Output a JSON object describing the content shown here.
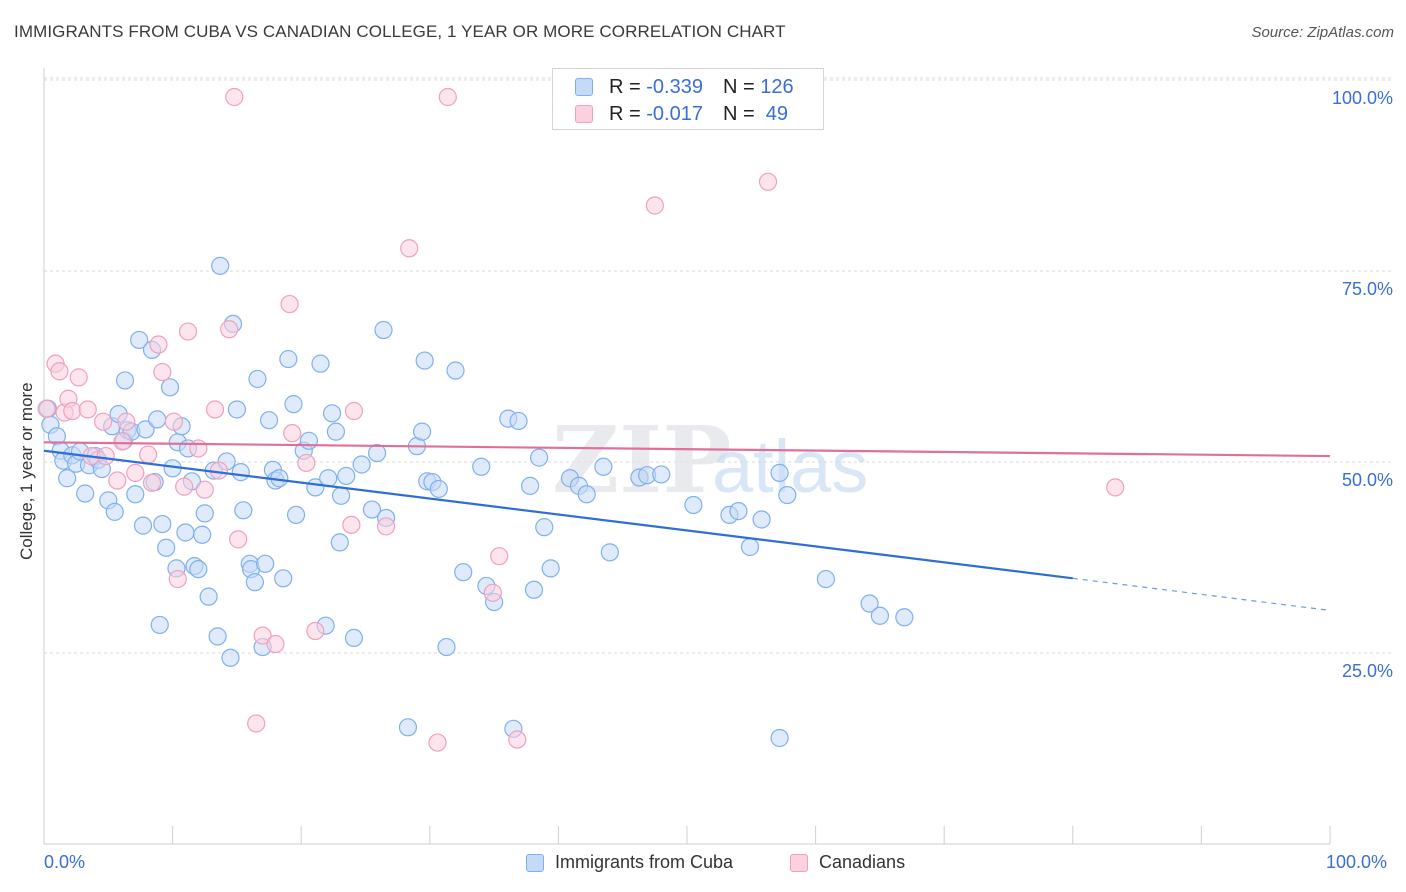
{
  "title": "IMMIGRANTS FROM CUBA VS CANADIAN COLLEGE, 1 YEAR OR MORE CORRELATION CHART",
  "source": "Source: ZipAtlas.com",
  "legend_top": [
    {
      "r_label": "R =",
      "r_value": "-0.339",
      "n_label": "N =",
      "n_value": "126",
      "color": "#7fb0ee",
      "fill": "#c4dbf7"
    },
    {
      "r_label": "R =",
      "r_value": "-0.017",
      "n_label": "N =",
      "n_value": "49",
      "color": "#f0a0bc",
      "fill": "#fbd0df"
    }
  ],
  "legend_bottom": [
    {
      "label": "Immigrants from Cuba",
      "color": "#7fb0ee",
      "fill": "#c4dbf7"
    },
    {
      "label": "Canadians",
      "color": "#f0a0bc",
      "fill": "#fbd0df"
    }
  ],
  "watermark": {
    "zip": "ZIP",
    "atlas": "atlas"
  },
  "chart_data": {
    "type": "scatter",
    "ylabel": "College, 1 year or more",
    "xlim": [
      0,
      100
    ],
    "ylim": [
      0,
      102
    ],
    "x_tick_labels": [
      "0.0%",
      "100.0%"
    ],
    "y_ticks": [
      {
        "value": 25,
        "label": "25.0%"
      },
      {
        "value": 50,
        "label": "50.0%"
      },
      {
        "value": 75,
        "label": "75.0%"
      },
      {
        "value": 100,
        "label": "100.0%"
      }
    ],
    "grid": true,
    "series": [
      {
        "name": "Immigrants from Cuba",
        "color": "#7fb0ee",
        "fill": "#c4dbf7",
        "trend": {
          "x0": 0,
          "y0": 53.7,
          "x1": 80,
          "y1": 37.0,
          "dash_to": 100,
          "dash_y": 32.8,
          "color": "#2e6fd4"
        },
        "points": [
          [
            0.3,
            59.2
          ],
          [
            0.5,
            57.1
          ],
          [
            1,
            55.6
          ],
          [
            1.3,
            53.7
          ],
          [
            1.5,
            52.4
          ],
          [
            1.8,
            50.1
          ],
          [
            2.2,
            53.1
          ],
          [
            2.5,
            52.0
          ],
          [
            2.8,
            53.6
          ],
          [
            3.2,
            48.1
          ],
          [
            3.5,
            51.8
          ],
          [
            4,
            53.0
          ],
          [
            4.2,
            52.5
          ],
          [
            4.5,
            51.3
          ],
          [
            5,
            47.2
          ],
          [
            5.3,
            56.9
          ],
          [
            5.5,
            45.7
          ],
          [
            5.8,
            58.5
          ],
          [
            6.2,
            55.0
          ],
          [
            6.3,
            62.9
          ],
          [
            6.5,
            56.4
          ],
          [
            6.8,
            56.2
          ],
          [
            7.1,
            48.0
          ],
          [
            7.4,
            68.2
          ],
          [
            7.7,
            43.9
          ],
          [
            7.9,
            56.5
          ],
          [
            8.4,
            66.9
          ],
          [
            8.6,
            49.6
          ],
          [
            8.8,
            57.8
          ],
          [
            9,
            30.9
          ],
          [
            9.2,
            44.1
          ],
          [
            9.5,
            41.0
          ],
          [
            9.8,
            62.0
          ],
          [
            10,
            51.4
          ],
          [
            10.3,
            38.3
          ],
          [
            10.4,
            54.8
          ],
          [
            10.7,
            56.9
          ],
          [
            11,
            43.0
          ],
          [
            11.2,
            54.0
          ],
          [
            11.5,
            49.7
          ],
          [
            11.7,
            38.6
          ],
          [
            12,
            38.2
          ],
          [
            12.3,
            42.7
          ],
          [
            12.5,
            45.5
          ],
          [
            12.8,
            34.6
          ],
          [
            13.2,
            51.1
          ],
          [
            13.7,
            77.9
          ],
          [
            14.2,
            52.3
          ],
          [
            14.5,
            26.6
          ],
          [
            14.7,
            70.3
          ],
          [
            15,
            59.1
          ],
          [
            15.3,
            50.9
          ],
          [
            15.5,
            45.9
          ],
          [
            16,
            38.9
          ],
          [
            16.1,
            38.2
          ],
          [
            16.4,
            36.5
          ],
          [
            16.6,
            63.1
          ],
          [
            17,
            28.0
          ],
          [
            17.2,
            38.9
          ],
          [
            17.5,
            57.7
          ],
          [
            17.8,
            51.2
          ],
          [
            18,
            49.8
          ],
          [
            18.3,
            50.1
          ],
          [
            18.6,
            37.0
          ],
          [
            19,
            65.7
          ],
          [
            19.4,
            59.8
          ],
          [
            19.6,
            45.3
          ],
          [
            20.2,
            53.7
          ],
          [
            20.6,
            55.0
          ],
          [
            21.1,
            48.9
          ],
          [
            21.5,
            65.1
          ],
          [
            21.9,
            30.8
          ],
          [
            22.1,
            50.1
          ],
          [
            22.4,
            58.6
          ],
          [
            22.7,
            56.2
          ],
          [
            23,
            41.7
          ],
          [
            23.1,
            47.8
          ],
          [
            23.5,
            50.4
          ],
          [
            24.1,
            29.2
          ],
          [
            24.7,
            51.9
          ],
          [
            25.5,
            46.0
          ],
          [
            25.9,
            53.4
          ],
          [
            26.4,
            69.5
          ],
          [
            26.6,
            44.9
          ],
          [
            29,
            54.3
          ],
          [
            29.4,
            56.2
          ],
          [
            29.6,
            65.5
          ],
          [
            29.8,
            49.7
          ],
          [
            30.2,
            49.6
          ],
          [
            30.7,
            48.7
          ],
          [
            31.3,
            28.0
          ],
          [
            32,
            64.2
          ],
          [
            32.6,
            37.8
          ],
          [
            34,
            51.6
          ],
          [
            34.4,
            36.0
          ],
          [
            35,
            33.9
          ],
          [
            36.1,
            57.9
          ],
          [
            36.9,
            57.6
          ],
          [
            37.8,
            49.1
          ],
          [
            38.1,
            35.5
          ],
          [
            38.5,
            52.8
          ],
          [
            38.9,
            43.7
          ],
          [
            39.4,
            38.3
          ],
          [
            40.9,
            50.1
          ],
          [
            41.6,
            49.1
          ],
          [
            42.2,
            48.0
          ],
          [
            43.5,
            51.6
          ],
          [
            44,
            40.4
          ],
          [
            46.3,
            50.2
          ],
          [
            46.9,
            50.5
          ],
          [
            48,
            50.6
          ],
          [
            50.5,
            46.6
          ],
          [
            53.3,
            45.3
          ],
          [
            54,
            45.8
          ],
          [
            54.9,
            41.1
          ],
          [
            55.8,
            44.7
          ],
          [
            57.2,
            50.8
          ],
          [
            57.8,
            47.9
          ],
          [
            60.8,
            36.9
          ],
          [
            64.2,
            33.7
          ],
          [
            65,
            32.1
          ],
          [
            66.9,
            31.9
          ],
          [
            28.3,
            17.5
          ],
          [
            36.5,
            17.3
          ],
          [
            57.2,
            16.1
          ],
          [
            13.5,
            29.4
          ]
        ]
      },
      {
        "name": "Canadians",
        "color": "#f0a0bc",
        "fill": "#fbd0df",
        "trend": {
          "x0": 0,
          "y0": 54.8,
          "x1": 100,
          "y1": 53.0,
          "color": "#e0709a"
        },
        "points": [
          [
            0.2,
            59.2
          ],
          [
            0.9,
            65.1
          ],
          [
            1.2,
            64.1
          ],
          [
            1.6,
            58.7
          ],
          [
            1.9,
            60.5
          ],
          [
            2.2,
            58.9
          ],
          [
            2.7,
            63.3
          ],
          [
            3.4,
            59.1
          ],
          [
            3.7,
            53.0
          ],
          [
            4.6,
            57.5
          ],
          [
            4.8,
            53.0
          ],
          [
            5.7,
            49.8
          ],
          [
            6.1,
            54.9
          ],
          [
            6.4,
            57.5
          ],
          [
            7.1,
            50.8
          ],
          [
            8.1,
            53.2
          ],
          [
            8.4,
            49.5
          ],
          [
            8.9,
            67.6
          ],
          [
            9.2,
            64.0
          ],
          [
            10.1,
            57.5
          ],
          [
            10.4,
            36.9
          ],
          [
            10.9,
            49.0
          ],
          [
            11.2,
            69.3
          ],
          [
            12,
            54.0
          ],
          [
            12.5,
            48.6
          ],
          [
            13.3,
            59.1
          ],
          [
            13.6,
            51.1
          ],
          [
            14.4,
            69.6
          ],
          [
            15.1,
            42.1
          ],
          [
            16.5,
            18.0
          ],
          [
            17,
            29.5
          ],
          [
            18,
            28.4
          ],
          [
            19.1,
            72.9
          ],
          [
            19.3,
            56.0
          ],
          [
            20.4,
            52.1
          ],
          [
            21.1,
            30.1
          ],
          [
            24.1,
            58.9
          ],
          [
            23.9,
            44.0
          ],
          [
            26.6,
            43.8
          ],
          [
            28.4,
            80.2
          ],
          [
            30.6,
            15.5
          ],
          [
            36.8,
            15.9
          ],
          [
            34.9,
            35.1
          ],
          [
            35.4,
            39.9
          ],
          [
            47.5,
            85.8
          ],
          [
            56.3,
            88.9
          ],
          [
            83.3,
            48.9
          ],
          [
            14.8,
            100
          ],
          [
            31.4,
            100
          ]
        ]
      }
    ]
  }
}
